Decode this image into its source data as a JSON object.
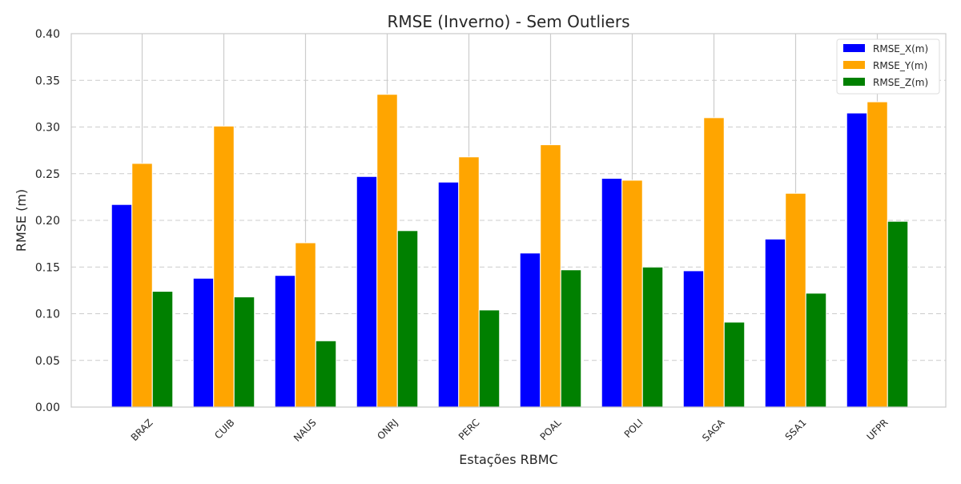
{
  "chart_data": {
    "type": "bar",
    "title": "RMSE (Inverno) - Sem Outliers",
    "xlabel": "Estações RBMC",
    "ylabel": "RMSE (m)",
    "ylim": [
      0,
      0.4
    ],
    "yticks": [
      "0.00",
      "0.05",
      "0.10",
      "0.15",
      "0.20",
      "0.25",
      "0.30",
      "0.35",
      "0.40"
    ],
    "categories": [
      "BRAZ",
      "CUIB",
      "NAUS",
      "ONRJ",
      "PERC",
      "POAL",
      "POLI",
      "SAGA",
      "SSA1",
      "UFPR"
    ],
    "series": [
      {
        "name": "RMSE_X(m)",
        "color": "#0000ff",
        "values": [
          0.217,
          0.138,
          0.141,
          0.247,
          0.241,
          0.165,
          0.245,
          0.146,
          0.18,
          0.315
        ]
      },
      {
        "name": "RMSE_Y(m)",
        "color": "#ffa500",
        "values": [
          0.261,
          0.301,
          0.176,
          0.335,
          0.268,
          0.281,
          0.243,
          0.31,
          0.229,
          0.327
        ]
      },
      {
        "name": "RMSE_Z(m)",
        "color": "#008000",
        "values": [
          0.124,
          0.118,
          0.071,
          0.189,
          0.104,
          0.147,
          0.15,
          0.091,
          0.122,
          0.199
        ]
      }
    ],
    "grid": true,
    "legend_position": "top-right"
  }
}
